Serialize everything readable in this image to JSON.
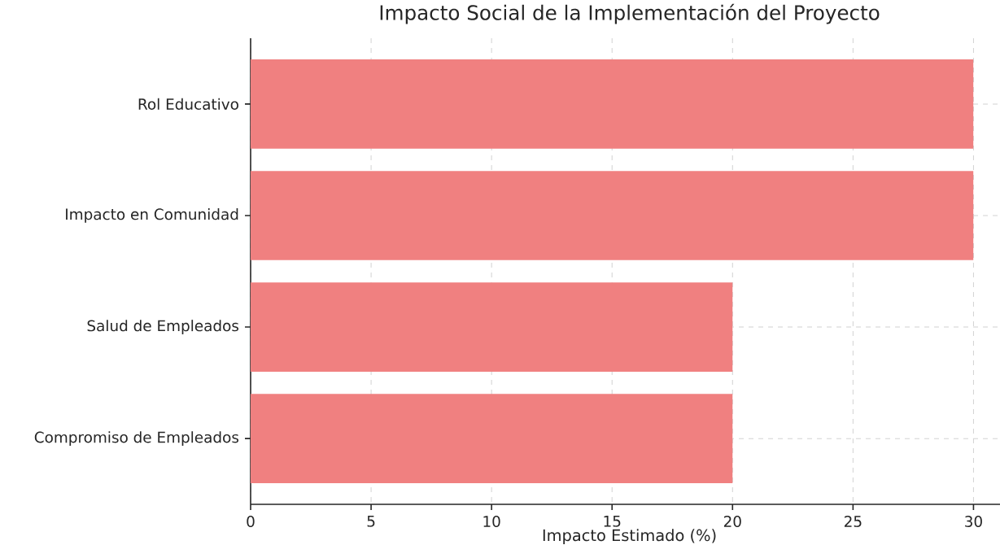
{
  "chart_data": {
    "type": "bar",
    "orientation": "horizontal",
    "title": "Impacto Social de la Implementación del Proyecto",
    "xlabel": "Impacto Estimado (%)",
    "categories": [
      "Rol Educativo",
      "Impacto en Comunidad",
      "Salud de Empleados",
      "Compromiso de Empleados"
    ],
    "values": [
      30,
      30,
      20,
      20
    ],
    "color": "#f08080",
    "xlim": [
      0,
      31.1
    ],
    "xticks": [
      0,
      5,
      10,
      15,
      20,
      25,
      30
    ],
    "grid": true
  }
}
